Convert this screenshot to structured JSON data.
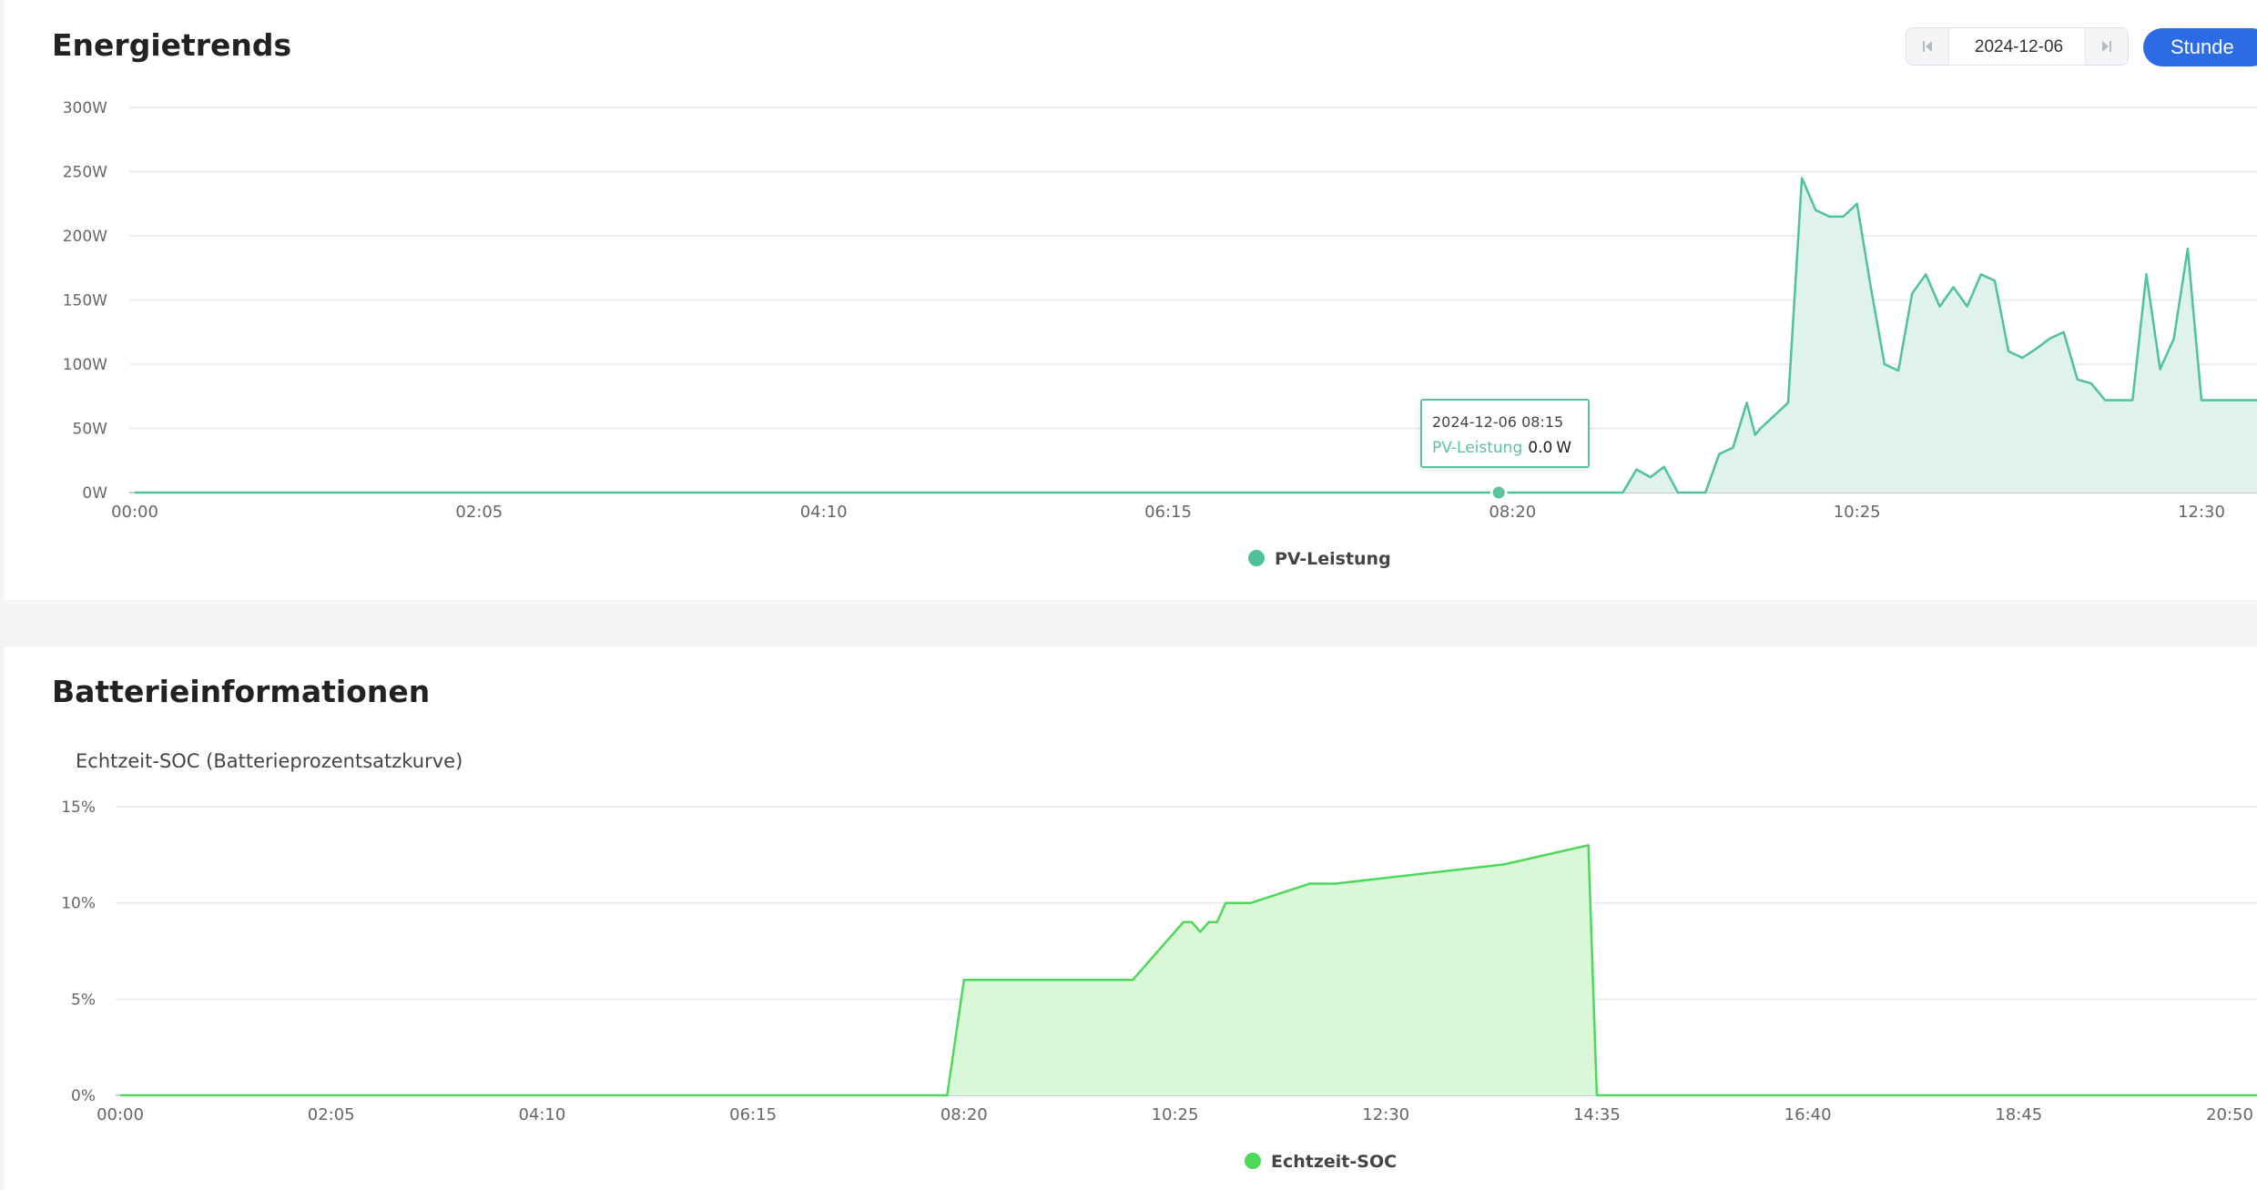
{
  "energy": {
    "title": "Energietrends",
    "date": "2024-12-06",
    "unit_button": "Stunde",
    "tooltip": {
      "time": "2024-12-06 08:15",
      "series": "PV-Leistung",
      "value": "0.0",
      "unit": "W"
    },
    "colors": {
      "line": "#4fc29a",
      "fill": "#dff3ea",
      "tooltip_border": "#5cc29a",
      "button": "#2d6be4"
    }
  },
  "battery": {
    "title": "Batterieinformationen",
    "subtitle": "Echtzeit-SOC (Batterieprozentsatzkurve)",
    "colors": {
      "line": "#4cd95a",
      "fill": "#daf7d8"
    }
  },
  "chart_data": [
    {
      "type": "area",
      "ylim": [
        0,
        300
      ],
      "y_ticks": [
        "0W",
        "50W",
        "100W",
        "150W",
        "200W",
        "250W",
        "300W"
      ],
      "x_ticks": [
        "00:00",
        "02:05",
        "04:10",
        "06:15",
        "08:20",
        "10:25",
        "12:30"
      ],
      "legend": "bottom-center",
      "grid": true,
      "series": [
        {
          "name": "PV-Leistung",
          "x": [
            "00:00",
            "08:15",
            "08:20",
            "08:45",
            "08:50",
            "09:00",
            "09:05",
            "09:10",
            "09:15",
            "09:20",
            "09:30",
            "09:35",
            "09:40",
            "09:45",
            "09:48",
            "09:50",
            "09:55",
            "10:00",
            "10:05",
            "10:10",
            "10:15",
            "10:20",
            "10:25",
            "10:30",
            "10:35",
            "10:40",
            "10:45",
            "10:50",
            "10:55",
            "11:00",
            "11:05",
            "11:10",
            "11:15",
            "11:20",
            "11:25",
            "11:30",
            "11:35",
            "11:40",
            "11:45",
            "11:50",
            "11:55",
            "12:00",
            "12:05",
            "12:10",
            "12:15",
            "12:20",
            "12:25",
            "12:30"
          ],
          "values": [
            0,
            0,
            0,
            0,
            0,
            0,
            18,
            12,
            20,
            0,
            0,
            30,
            35,
            70,
            45,
            50,
            60,
            70,
            245,
            220,
            215,
            215,
            225,
            160,
            100,
            95,
            155,
            170,
            145,
            160,
            145,
            170,
            165,
            110,
            105,
            112,
            120,
            125,
            88,
            85,
            72,
            72,
            72,
            170,
            96,
            120,
            190,
            72
          ]
        }
      ]
    },
    {
      "type": "area",
      "ylim": [
        0,
        15
      ],
      "y_ticks": [
        "0%",
        "5%",
        "10%",
        "15%"
      ],
      "x_ticks": [
        "00:00",
        "02:05",
        "04:10",
        "06:15",
        "08:20",
        "10:25",
        "12:30",
        "14:35",
        "16:40",
        "18:45",
        "20:50"
      ],
      "legend": "bottom-center",
      "grid": true,
      "series": [
        {
          "name": "Echtzeit-SOC",
          "x": [
            "00:00",
            "08:10",
            "08:20",
            "10:00",
            "10:10",
            "10:20",
            "10:25",
            "10:30",
            "10:35",
            "10:40",
            "10:45",
            "10:50",
            "10:55",
            "11:10",
            "11:45",
            "12:00",
            "13:40",
            "14:30",
            "14:35",
            "20:50"
          ],
          "values": [
            0,
            0,
            6,
            6,
            7,
            8,
            8.5,
            9,
            9,
            8.5,
            9,
            9,
            10,
            10,
            11,
            11,
            12,
            13,
            0,
            0
          ]
        }
      ]
    }
  ]
}
